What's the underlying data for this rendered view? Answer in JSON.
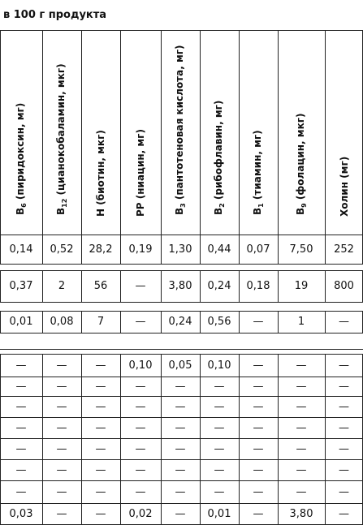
{
  "title": "в 100 г продукта",
  "columns": [
    {
      "main": "B",
      "sub": "6",
      "rest": " (пиридоксин, мг)"
    },
    {
      "main": "B",
      "sub": "12",
      "rest": " (цианокобаламин, мкг)"
    },
    {
      "main": "H (биотин, мкг)",
      "sub": "",
      "rest": ""
    },
    {
      "main": "PP (ниацин, мг)",
      "sub": "",
      "rest": ""
    },
    {
      "main": "B",
      "sub": "3",
      "rest": " (пантотеновая кислота, мг)"
    },
    {
      "main": "B",
      "sub": "2",
      "rest": " (рибофлавин, мг)"
    },
    {
      "main": "B",
      "sub": "1",
      "rest": " (тиамин, мг)"
    },
    {
      "main": "B",
      "sub": "9",
      "rest": " (фолацин, мкг)"
    },
    {
      "main": "Холин (мг)",
      "sub": "",
      "rest": ""
    }
  ],
  "rows": [
    [
      "0,14",
      "0,52",
      "28,2",
      "0,19",
      "1,30",
      "0,44",
      "0,07",
      "7,50",
      "252"
    ],
    [
      "0,37",
      "2",
      "56",
      "—",
      "3,80",
      "0,24",
      "0,18",
      "19",
      "800"
    ],
    [
      "0,01",
      "0,08",
      "7",
      "—",
      "0,24",
      "0,56",
      "—",
      "1",
      "—"
    ],
    [
      "—",
      "—",
      "—",
      "0,10",
      "0,05",
      "0,10",
      "—",
      "—",
      "—"
    ],
    [
      "—",
      "—",
      "—",
      "—",
      "—",
      "—",
      "—",
      "—",
      "—"
    ],
    [
      "—",
      "—",
      "—",
      "—",
      "—",
      "—",
      "—",
      "—",
      "—"
    ],
    [
      "—",
      "—",
      "—",
      "—",
      "—",
      "—",
      "—",
      "—",
      "—"
    ],
    [
      "—",
      "—",
      "—",
      "—",
      "—",
      "—",
      "—",
      "—",
      "—"
    ],
    [
      "—",
      "—",
      "—",
      "—",
      "—",
      "—",
      "—",
      "—",
      "—"
    ],
    [
      "—",
      "—",
      "—",
      "—",
      "—",
      "—",
      "—",
      "—",
      "—"
    ],
    [
      "0,03",
      "—",
      "—",
      "0,02",
      "—",
      "0,01",
      "—",
      "3,80",
      "—"
    ]
  ]
}
